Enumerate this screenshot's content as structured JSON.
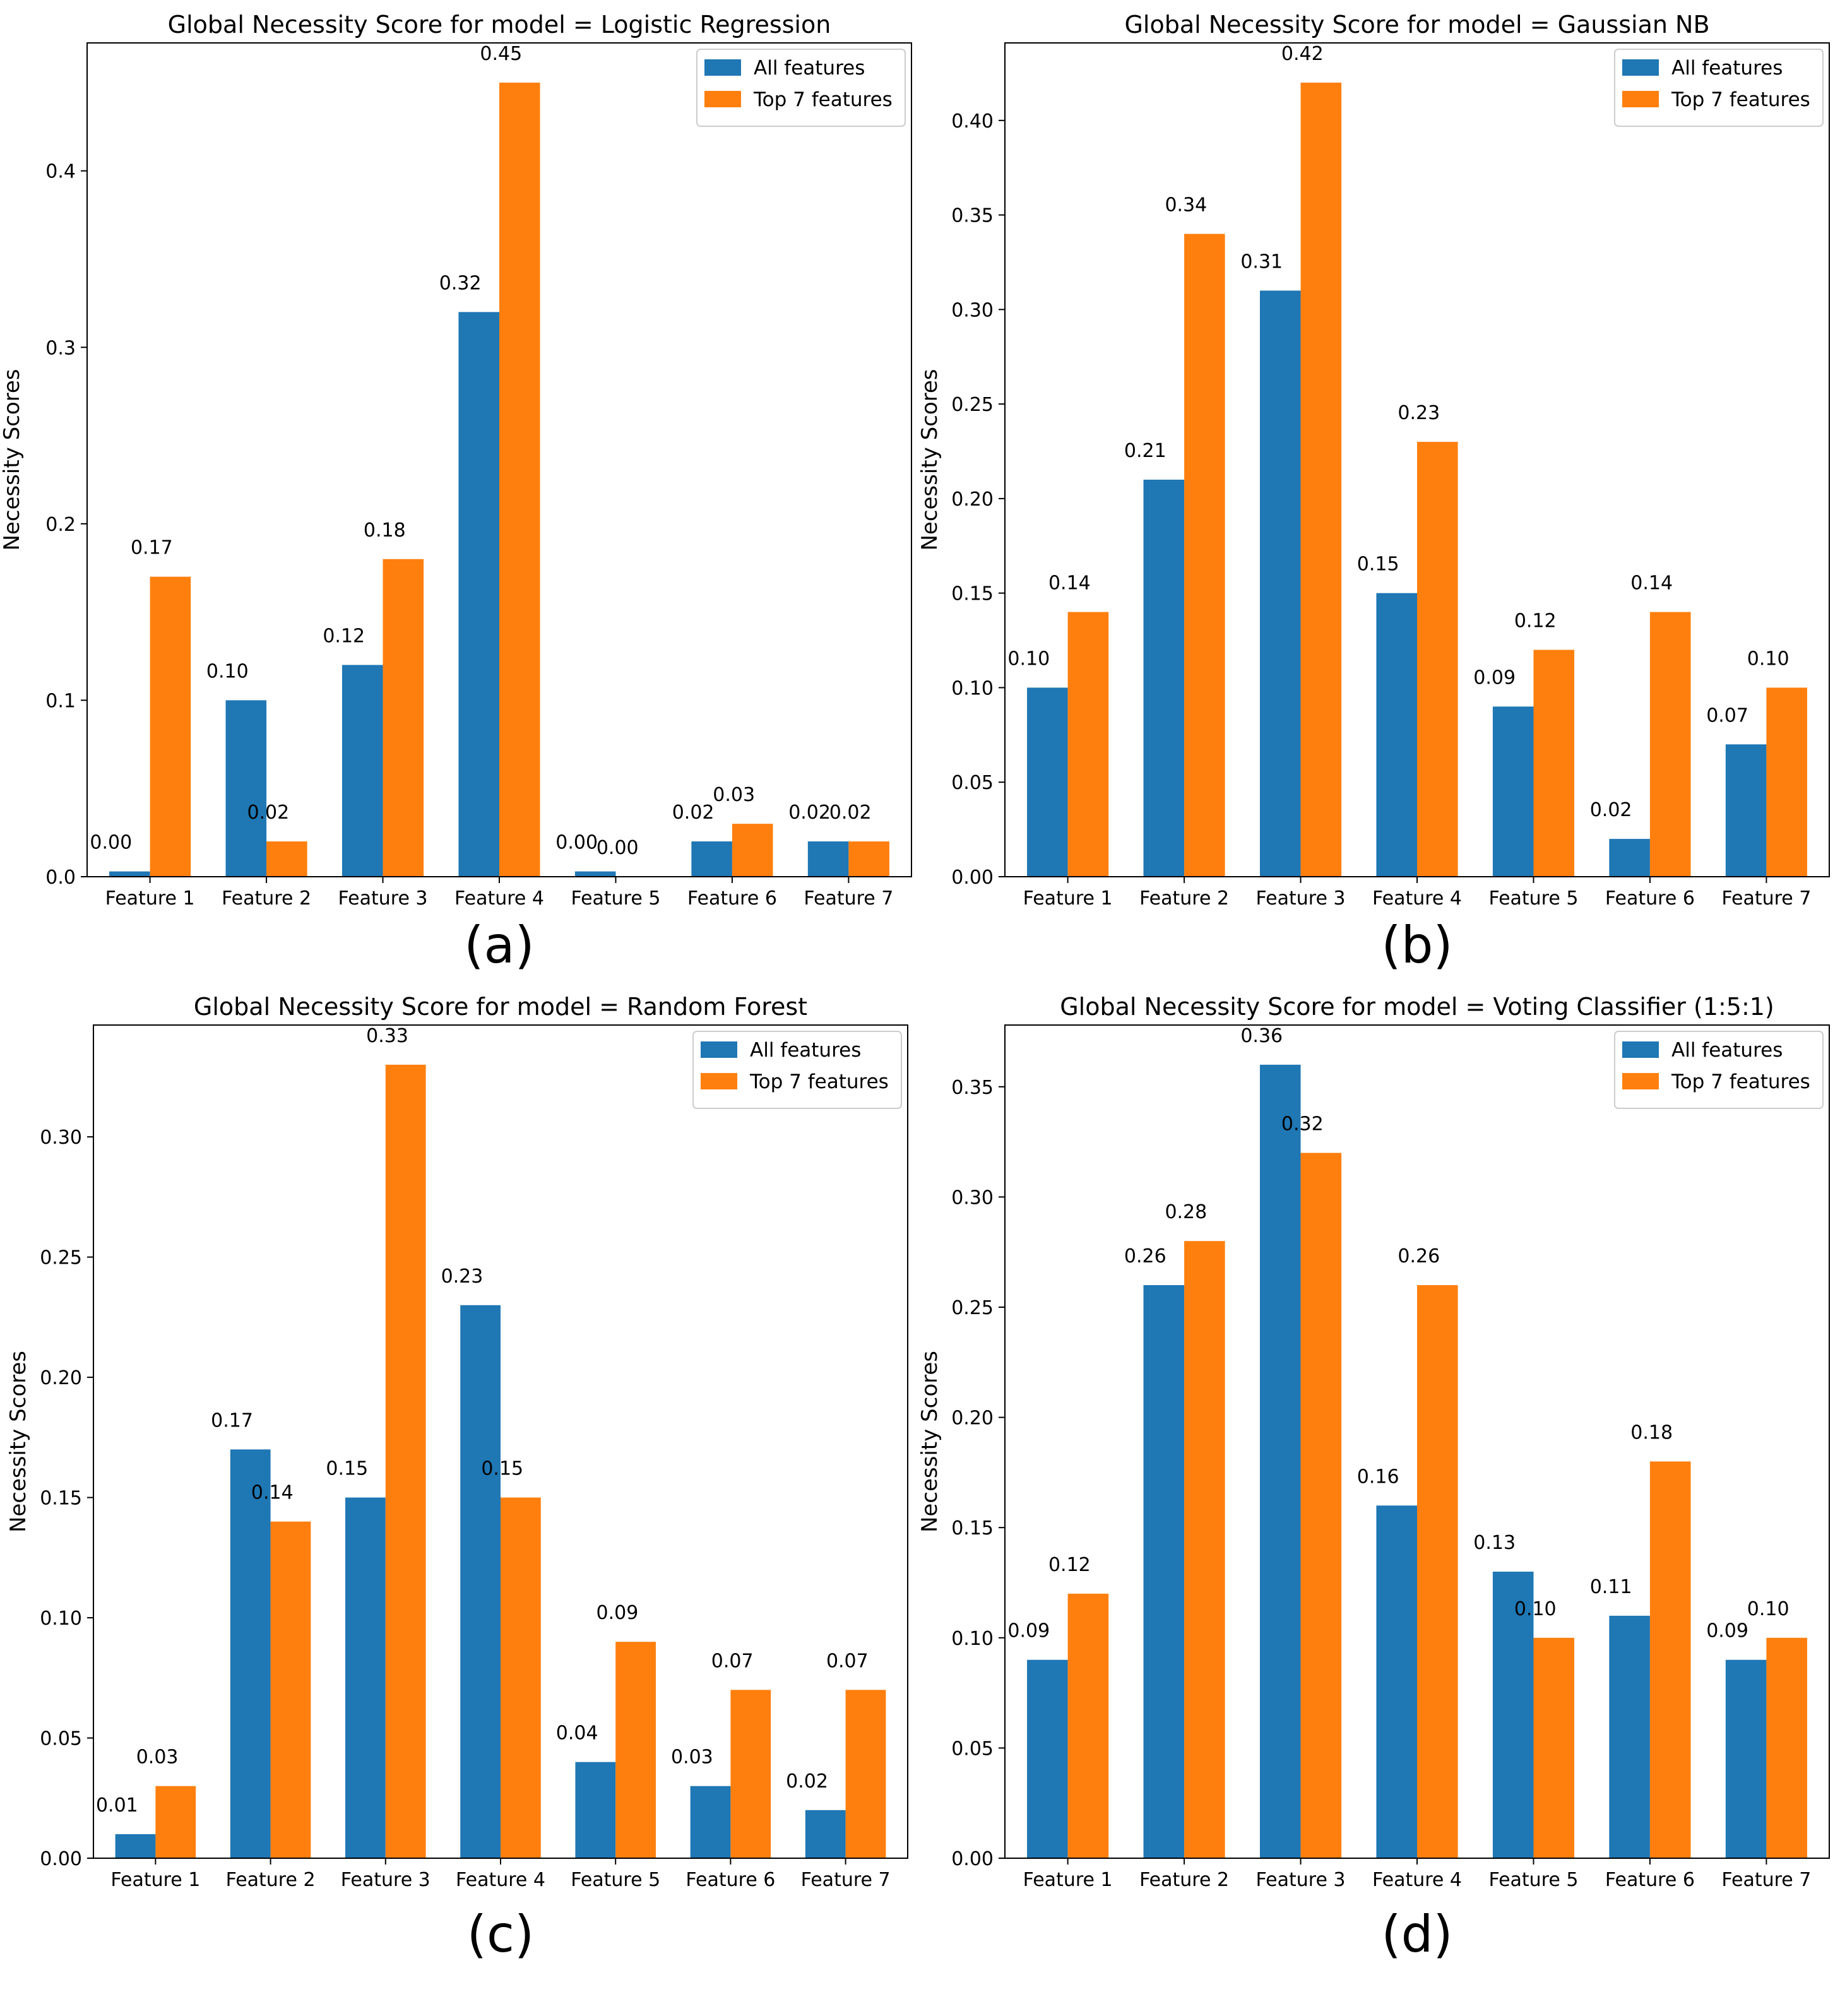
{
  "figure": {
    "panel_labels": [
      "(a)",
      "(b)",
      "(c)",
      "(d)"
    ]
  },
  "colors": {
    "all_features": "#1f77b4",
    "top7_features": "#ff7f0e",
    "axis": "#000000",
    "text": "#000000"
  },
  "chart_data": [
    {
      "type": "bar",
      "title": "Global Necessity Score for model = Logistic Regression",
      "xlabel": "",
      "ylabel": "Necessity Scores",
      "categories": [
        "Feature 1",
        "Feature 2",
        "Feature 3",
        "Feature 4",
        "Feature 5",
        "Feature 6",
        "Feature 7"
      ],
      "series": [
        {
          "name": "All features",
          "values": [
            0.003,
            0.1,
            0.12,
            0.32,
            0.003,
            0.02,
            0.02
          ],
          "labels": [
            "0.00",
            "0.10",
            "0.12",
            "0.32",
            "0.00",
            "0.02",
            "0.02"
          ]
        },
        {
          "name": "Top 7 features",
          "values": [
            0.17,
            0.02,
            0.18,
            0.45,
            0.0,
            0.03,
            0.02
          ],
          "labels": [
            "0.17",
            "0.02",
            "0.18",
            "0.45",
            "0.00",
            "0.03",
            "0.02"
          ]
        }
      ],
      "ylim": [
        0,
        0.4725
      ],
      "yticks": [
        0.0,
        0.1,
        0.2,
        0.3,
        0.4
      ],
      "ytick_labels": [
        "0.0",
        "0.1",
        "0.2",
        "0.3",
        "0.4"
      ],
      "legend": "top-right",
      "grid": false
    },
    {
      "type": "bar",
      "title": "Global Necessity Score for model = Gaussian NB",
      "xlabel": "",
      "ylabel": "Necessity Scores",
      "categories": [
        "Feature 1",
        "Feature 2",
        "Feature 3",
        "Feature 4",
        "Feature 5",
        "Feature 6",
        "Feature 7"
      ],
      "series": [
        {
          "name": "All features",
          "values": [
            0.1,
            0.21,
            0.31,
            0.15,
            0.09,
            0.02,
            0.07
          ],
          "labels": [
            "0.10",
            "0.21",
            "0.31",
            "0.15",
            "0.09",
            "0.02",
            "0.07"
          ]
        },
        {
          "name": "Top 7 features",
          "values": [
            0.14,
            0.34,
            0.42,
            0.23,
            0.12,
            0.14,
            0.1
          ],
          "labels": [
            "0.14",
            "0.34",
            "0.42",
            "0.23",
            "0.12",
            "0.14",
            "0.10"
          ]
        }
      ],
      "ylim": [
        0,
        0.441
      ],
      "yticks": [
        0.0,
        0.05,
        0.1,
        0.15,
        0.2,
        0.25,
        0.3,
        0.35,
        0.4
      ],
      "ytick_labels": [
        "0.00",
        "0.05",
        "0.10",
        "0.15",
        "0.20",
        "0.25",
        "0.30",
        "0.35",
        "0.40"
      ],
      "legend": "top-right",
      "grid": false
    },
    {
      "type": "bar",
      "title": "Global Necessity Score for model = Random Forest",
      "xlabel": "",
      "ylabel": "Necessity Scores",
      "categories": [
        "Feature 1",
        "Feature 2",
        "Feature 3",
        "Feature 4",
        "Feature 5",
        "Feature 6",
        "Feature 7"
      ],
      "series": [
        {
          "name": "All features",
          "values": [
            0.01,
            0.17,
            0.15,
            0.23,
            0.04,
            0.03,
            0.02
          ],
          "labels": [
            "0.01",
            "0.17",
            "0.15",
            "0.23",
            "0.04",
            "0.03",
            "0.02"
          ]
        },
        {
          "name": "Top 7 features",
          "values": [
            0.03,
            0.14,
            0.33,
            0.15,
            0.09,
            0.07,
            0.07
          ],
          "labels": [
            "0.03",
            "0.14",
            "0.33",
            "0.15",
            "0.09",
            "0.07",
            "0.07"
          ]
        }
      ],
      "ylim": [
        0,
        0.3465
      ],
      "yticks": [
        0.0,
        0.05,
        0.1,
        0.15,
        0.2,
        0.25,
        0.3
      ],
      "ytick_labels": [
        "0.00",
        "0.05",
        "0.10",
        "0.15",
        "0.20",
        "0.25",
        "0.30"
      ],
      "legend": "top-right",
      "grid": false
    },
    {
      "type": "bar",
      "title": "Global Necessity Score for model = Voting Classifier (1:5:1)",
      "xlabel": "",
      "ylabel": "Necessity Scores",
      "categories": [
        "Feature 1",
        "Feature 2",
        "Feature 3",
        "Feature 4",
        "Feature 5",
        "Feature 6",
        "Feature 7"
      ],
      "series": [
        {
          "name": "All features",
          "values": [
            0.09,
            0.26,
            0.36,
            0.16,
            0.13,
            0.11,
            0.09
          ],
          "labels": [
            "0.09",
            "0.26",
            "0.36",
            "0.16",
            "0.13",
            "0.11",
            "0.09"
          ]
        },
        {
          "name": "Top 7 features",
          "values": [
            0.12,
            0.28,
            0.32,
            0.26,
            0.1,
            0.18,
            0.1
          ],
          "labels": [
            "0.12",
            "0.28",
            "0.32",
            "0.26",
            "0.10",
            "0.18",
            "0.10"
          ]
        }
      ],
      "ylim": [
        0,
        0.378
      ],
      "yticks": [
        0.0,
        0.05,
        0.1,
        0.15,
        0.2,
        0.25,
        0.3,
        0.35
      ],
      "ytick_labels": [
        "0.00",
        "0.05",
        "0.10",
        "0.15",
        "0.20",
        "0.25",
        "0.30",
        "0.35"
      ],
      "legend": "top-right",
      "grid": false
    }
  ]
}
